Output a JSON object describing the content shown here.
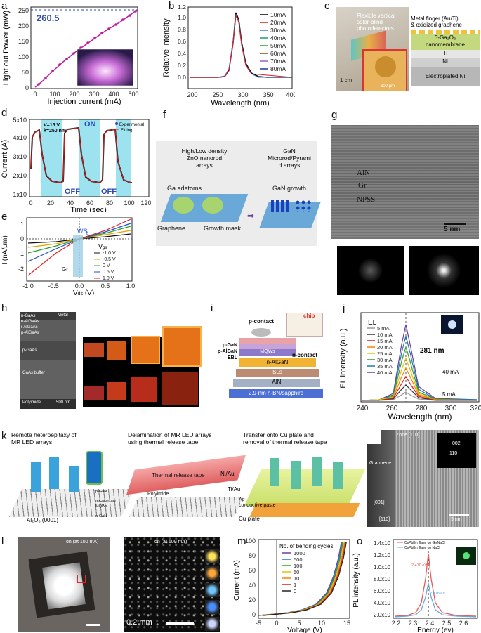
{
  "panels": {
    "a": {
      "label": "a",
      "ylabel": "Light out Power (mW)",
      "xlabel": "Injection current (mA)",
      "peak": "260.5",
      "yticks": [
        "0",
        "50",
        "100",
        "150",
        "200",
        "250"
      ],
      "xticks": [
        "0",
        "100",
        "200",
        "300",
        "400",
        "500"
      ]
    },
    "b": {
      "label": "b",
      "ylabel": "Relative intensity",
      "xlabel": "Wavelength (nm)",
      "yticks": [
        "0.0",
        "0.2",
        "0.4",
        "0.6",
        "0.8",
        "1.0",
        "1.2"
      ],
      "xticks": [
        "200",
        "250",
        "300",
        "350",
        "400"
      ],
      "legend": [
        "10mA",
        "20mA",
        "30mA",
        "40mA",
        "50mA",
        "60mA",
        "70mA",
        "80mA"
      ],
      "colors": [
        "#000000",
        "#e41a1c",
        "#3a7bd5",
        "#1b9e77",
        "#2ca02c",
        "#8b4513",
        "#9467bd",
        "#1f3a93"
      ]
    },
    "c": {
      "label": "c",
      "title1": "Flexible vertical",
      "title2": "solar-blind photodetectors",
      "scale1": "1 cm",
      "scale2": "300 µm",
      "layers": [
        "Metal finger (Au/Ti)",
        "& oxidized graphene",
        "β-Ga₂O₃",
        "nanomembrane",
        "Ti",
        "Ni",
        "Electroplated Ni"
      ]
    },
    "d": {
      "label": "d",
      "ylabel": "Current (A)",
      "xlabel": "Time (sec)",
      "yticks": [
        "1x10",
        "2x10",
        "3x10",
        "4x10",
        "5x10"
      ],
      "xticks": [
        "0",
        "20",
        "40",
        "60",
        "80",
        "100",
        "120"
      ],
      "note1": "V=15 V",
      "note2": "λ=250 nm",
      "on": "ON",
      "off": "OFF",
      "legend": [
        "Experimental",
        "Fitting"
      ]
    },
    "e": {
      "label": "e",
      "ylabel": "I (nA/µm)",
      "xlabel": "V",
      "xsub": "ds",
      "xunit": " (V)",
      "ws": "WS",
      "ws_sub": "2",
      "gr": "Gr",
      "vg_title": "V",
      "vg_sub": "gs",
      "vg": [
        "-1.0 V",
        "-0.5 V",
        "0 V",
        "0.5 V",
        "1.0 V"
      ],
      "yticks": [
        "1",
        "0",
        "-1",
        "-2"
      ],
      "xticks": [
        "-1.0",
        "-0.5",
        "0.0",
        "0.5",
        "1.0"
      ]
    },
    "f": {
      "label": "f",
      "left_title": "High/Low density\nZnO nanorod\narrays",
      "right_title": "GaN\nMicrorod/Pyrami\nd arrays",
      "ga": "Ga adatoms",
      "gan": "GaN growth",
      "graphene": "Graphene",
      "mask": "Growth mask"
    },
    "g": {
      "label": "g",
      "aln": "AlN",
      "gr": "Gr",
      "npss": "NPSS",
      "scale": "5 nm"
    },
    "h": {
      "label": "h",
      "metal": "Metal",
      "layers": [
        "n-GaAs",
        "n-AlGaAs",
        "i-AlGaAs",
        "p-AlGaAs",
        "p-GaAs",
        "GaAs buffer",
        "Polyimide"
      ],
      "scale": "500 nm"
    },
    "i": {
      "label": "i",
      "pcontact": "p-contact",
      "chip": "chip",
      "left": [
        "p-GaN",
        "p-AlGaN",
        "EBL"
      ],
      "layers": [
        "MQWs",
        "n-contact",
        "n-AlGaN",
        "SLs",
        "AlN",
        "2.9-nm h-BN/sapphire"
      ]
    },
    "j": {
      "label": "j",
      "ylabel": "EL intensity (a.u.)",
      "xlabel": "Wavelength (nm)",
      "el": "EL",
      "peak": "281 nm",
      "legend": [
        "5 mA",
        "10 mA",
        "15 mA",
        "20 mA",
        "25 mA",
        "30 mA",
        "35 mA",
        "40 mA"
      ],
      "xticks": [
        "240",
        "260",
        "280",
        "300",
        "320"
      ],
      "arrow_hi": "40 mA",
      "arrow_lo": "5 mA"
    },
    "k": {
      "label": "k",
      "step1": "Remote heteroepitaxy of\nMR LED arrays",
      "step2": "Delamination of MR LED arrays\nusing thermal release tape",
      "step3": "Transfer onto Cu plate and\nremoval of thermal release tape",
      "legend": [
        "p-GaN",
        "InGaN/GaN\nMQWs",
        "n-GaN"
      ],
      "substrate": "Al₂O₃ (0001)",
      "tape": "Thermal release tape",
      "polyimide": "Polyimide",
      "niau": "Ni/Au",
      "tiau": "Ti/Au",
      "ag": "Ag\nconductive paste",
      "cu": "Cu plate"
    },
    "n": {
      "label": "n",
      "zone": "Zone [110]",
      "graphene": "Graphene",
      "ax1": "[001]",
      "ax2": "[110]",
      "scale": "5 nm",
      "spot1": "002",
      "spot2": "110"
    },
    "l": {
      "label": "l",
      "on1": "on (at 100 mA)",
      "on2": "on (at 100 mA)",
      "scale": "0.2 mm"
    },
    "m": {
      "label": "m",
      "ylabel": "Current (mA)",
      "xlabel": "Voltage (V)",
      "title": "No. of bending cycles",
      "legend": [
        "1000",
        "500",
        "100",
        "50",
        "10",
        "1",
        "0"
      ],
      "colors": [
        "#6a3d9a",
        "#1f78b4",
        "#33a02c",
        "#e6c200",
        "#ff7f00",
        "#e31a1c",
        "#222222"
      ],
      "yticks": [
        "0",
        "20",
        "40",
        "60",
        "80",
        "100"
      ],
      "xticks": [
        "-5",
        "0",
        "5",
        "10",
        "15"
      ]
    },
    "o": {
      "label": "o",
      "ylabel": "PL intensity (a.u.)",
      "xlabel": "Energy (ev)",
      "legend": [
        "CsPbBr₃ flake on Gr/NaCl",
        "CsPbBr₃ flake on NaCl"
      ],
      "e1": "2.410 eV",
      "e2": "2.418 eV",
      "yticks": [
        "2.0x10",
        "4.0x10",
        "6.0x10",
        "8.0x10",
        "1.0x10",
        "1.2x10",
        "1.4x10"
      ],
      "xticks": [
        "2.2",
        "2.3",
        "2.4",
        "2.5",
        "2.6"
      ]
    }
  }
}
